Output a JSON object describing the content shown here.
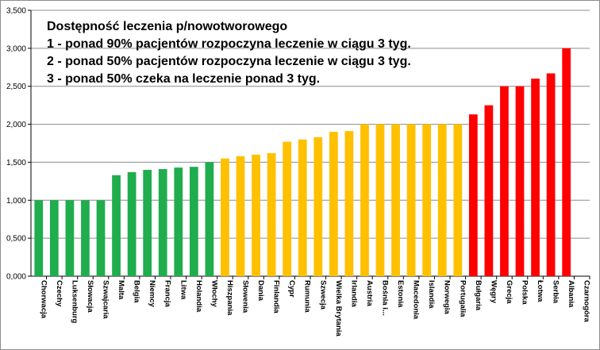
{
  "chart_data": {
    "type": "bar",
    "title_lines": [
      "Dostępność leczenia p/nowotworowego",
      "1 - ponad 90% pacjentów rozpoczyna leczenie w ciągu 3 tyg.",
      "2 - ponad 50% pacjentów rozpoczyna leczenie w ciągu 3 tyg.",
      "3 - ponad 50% czeka na leczenie ponad 3 tyg."
    ],
    "categories": [
      "Chorwacja",
      "Czechy",
      "Luksenburg",
      "Słowacja",
      "Szwajcaria",
      "Malta",
      "Belgia",
      "Niemcy",
      "Francja",
      "Litwa",
      "Holandia",
      "Włochy",
      "Hiszpania",
      "Słowenia",
      "Dania",
      "Finlandia",
      "Cypr",
      "Rumunia",
      "Szwecja",
      "Wielka Brytania",
      "Irlandia",
      "Austria",
      "Bośnia i...",
      "Estonia",
      "Macedonia",
      "Islandia",
      "Norwegia",
      "Portugalia",
      "Bułgaria",
      "Węgry",
      "Grecja",
      "Polska",
      "Łotwa",
      "Serbia",
      "Albania",
      "Czarnogóra"
    ],
    "values": [
      1.0,
      1.0,
      1.0,
      1.0,
      1.0,
      1.33,
      1.37,
      1.4,
      1.41,
      1.43,
      1.44,
      1.5,
      1.55,
      1.58,
      1.6,
      1.62,
      1.77,
      1.8,
      1.83,
      1.9,
      1.91,
      2.0,
      2.0,
      2.0,
      2.0,
      2.0,
      2.0,
      2.0,
      2.13,
      2.25,
      2.5,
      2.5,
      2.6,
      2.67,
      3.0,
      0
    ],
    "groups": [
      1,
      1,
      1,
      1,
      1,
      1,
      1,
      1,
      1,
      1,
      1,
      1,
      2,
      2,
      2,
      2,
      2,
      2,
      2,
      2,
      2,
      2,
      2,
      2,
      2,
      2,
      2,
      2,
      3,
      3,
      3,
      3,
      3,
      3,
      3,
      3
    ],
    "group_colors": {
      "1": "#1fad4e",
      "2": "#ffc000",
      "3": "#ff0000"
    },
    "ylim": [
      0,
      3.5
    ],
    "yticks": [
      0,
      0.5,
      1.0,
      1.5,
      2.0,
      2.5,
      3.0,
      3.5
    ],
    "ytick_labels": [
      "0,000",
      "0,500",
      "1,000",
      "1,500",
      "2,000",
      "2,500",
      "3,000",
      "3,500"
    ],
    "grid": "horizontal",
    "gridline_color": "#8c8c8c",
    "legend": "none"
  }
}
